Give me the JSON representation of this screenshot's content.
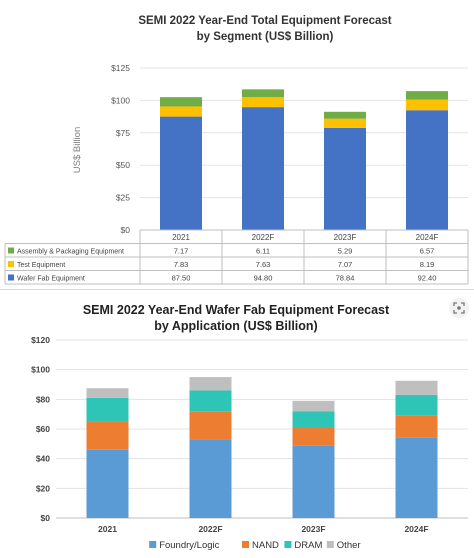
{
  "chart_data": [
    {
      "type": "bar",
      "stacked": true,
      "title": "SEMI 2022 Year-End Total Equipment Forecast",
      "subtitle": "by Segment (US$ Billion)",
      "ylabel": "US$ Billion",
      "ylim": [
        0,
        125
      ],
      "yticks": [
        "$0",
        "$25",
        "$50",
        "$75",
        "$100",
        "$125"
      ],
      "categories": [
        "2021",
        "2022F",
        "2023F",
        "2024F"
      ],
      "series": [
        {
          "name": "Wafer Fab Equipment",
          "values": [
            87.5,
            94.8,
            78.84,
            92.4
          ],
          "display": [
            "87.50",
            "94.80",
            "78.84",
            "92.40"
          ],
          "color": "#4472c4"
        },
        {
          "name": "Test Equipment",
          "values": [
            7.83,
            7.63,
            7.07,
            8.19
          ],
          "display": [
            "7.83",
            "7.63",
            "7.07",
            "8.19"
          ],
          "color": "#ffc000"
        },
        {
          "name": "Assembly & Packaging Equipment",
          "values": [
            7.17,
            6.11,
            5.29,
            6.57
          ],
          "display": [
            "7.17",
            "6.11",
            "5.29",
            "6.57"
          ],
          "color": "#70ad47"
        }
      ],
      "table_row_order": [
        2,
        1,
        0
      ],
      "grid": true,
      "legend": "data-table"
    },
    {
      "type": "bar",
      "stacked": true,
      "title": "SEMI 2022 Year-End Wafer Fab Equipment Forecast",
      "subtitle": "by Application (US$ Billion)",
      "ylim": [
        0,
        120
      ],
      "yticks": [
        "$0",
        "$20",
        "$40",
        "$60",
        "$80",
        "$100",
        "$120"
      ],
      "categories": [
        "2021",
        "2022F",
        "2023F",
        "2024F"
      ],
      "series": [
        {
          "name": "Foundry/Logic",
          "values": [
            46,
            53,
            49,
            54
          ],
          "color": "#5b9bd5"
        },
        {
          "name": "NAND",
          "values": [
            19,
            19,
            12,
            15
          ],
          "color": "#ed7d31"
        },
        {
          "name": "DRAM",
          "values": [
            16,
            14,
            11,
            14
          ],
          "color": "#2ec4b6"
        },
        {
          "name": "Other",
          "values": [
            6.5,
            9,
            7,
            9.5
          ],
          "color": "#bfbfbf"
        }
      ],
      "grid": true,
      "legend": "bottom"
    }
  ]
}
